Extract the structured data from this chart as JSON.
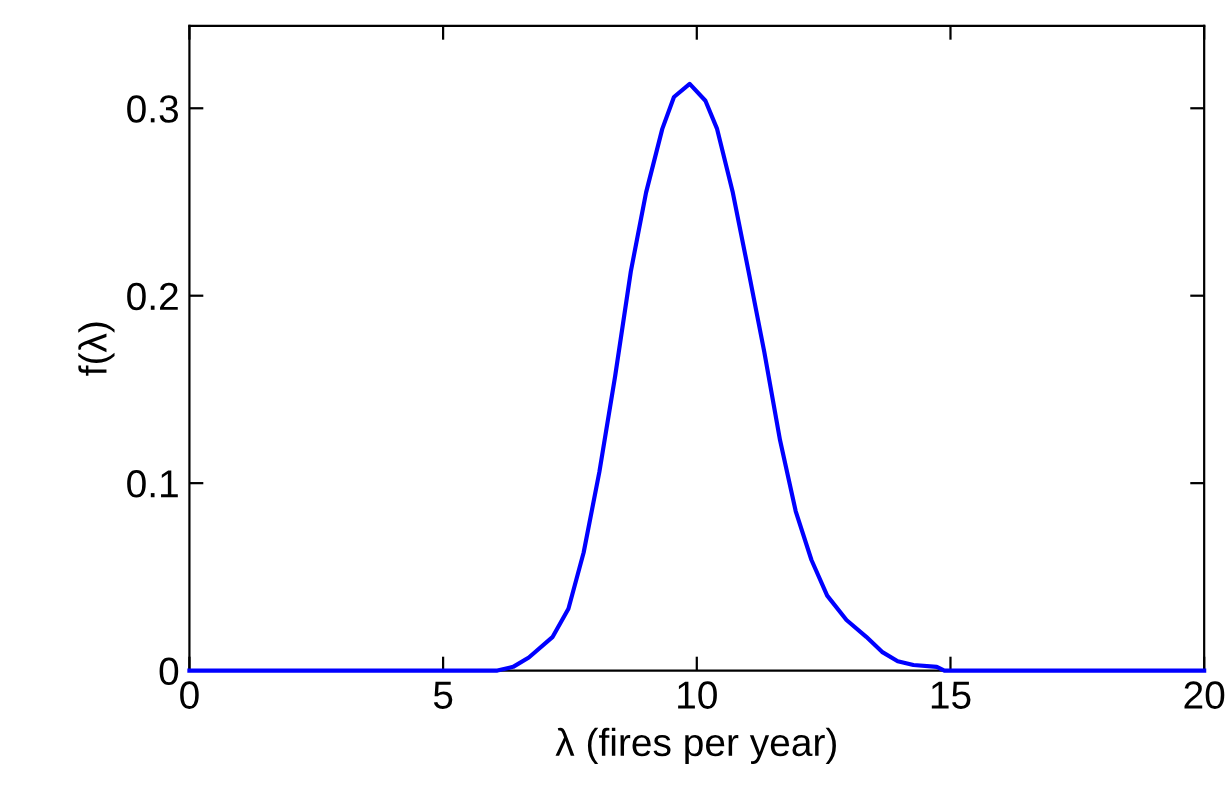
{
  "chart_data": {
    "type": "line",
    "xlabel": "λ (fires per year)",
    "ylabel": "f(λ)",
    "x": [
      0,
      6.07,
      6.38,
      6.69,
      7.16,
      7.47,
      7.77,
      8.08,
      8.39,
      8.7,
      9.0,
      9.32,
      9.55,
      9.86,
      10.17,
      10.4,
      10.71,
      11.02,
      11.33,
      11.64,
      11.95,
      12.26,
      12.57,
      12.95,
      13.34,
      13.65,
      13.96,
      14.27,
      14.73,
      14.88,
      20
    ],
    "series": [
      {
        "color": "#0000ff",
        "values": [
          0,
          0,
          0.002,
          0.007,
          0.018,
          0.033,
          0.063,
          0.106,
          0.157,
          0.213,
          0.255,
          0.289,
          0.306,
          0.313,
          0.304,
          0.289,
          0.255,
          0.213,
          0.17,
          0.123,
          0.085,
          0.059,
          0.04,
          0.027,
          0.018,
          0.01,
          0.005,
          0.003,
          0.002,
          0,
          0
        ]
      }
    ],
    "xlim": [
      0,
      20
    ],
    "xticks": [
      0,
      5,
      10,
      15,
      20
    ],
    "ylim": [
      0,
      0.344
    ],
    "yticks": [
      0,
      0.1,
      0.2,
      0.3
    ],
    "grid": false,
    "legend": false,
    "marker": "none",
    "line_style": "solid"
  }
}
